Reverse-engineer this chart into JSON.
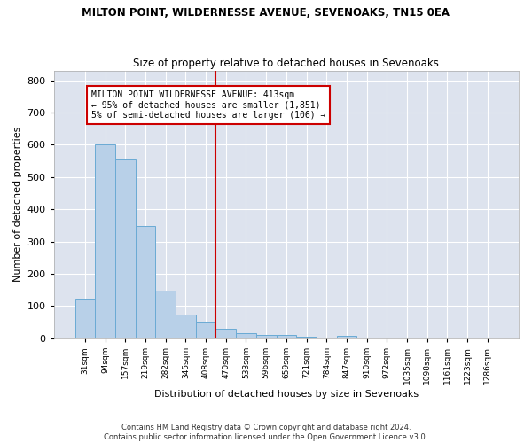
{
  "title": "MILTON POINT, WILDERNESSE AVENUE, SEVENOAKS, TN15 0EA",
  "subtitle": "Size of property relative to detached houses in Sevenoaks",
  "xlabel": "Distribution of detached houses by size in Sevenoaks",
  "ylabel": "Number of detached properties",
  "bar_color": "#b8d0e8",
  "bar_edge_color": "#6aaad4",
  "background_color": "#dde3ee",
  "grid_color": "#ffffff",
  "categories": [
    "31sqm",
    "94sqm",
    "157sqm",
    "219sqm",
    "282sqm",
    "345sqm",
    "408sqm",
    "470sqm",
    "533sqm",
    "596sqm",
    "659sqm",
    "721sqm",
    "784sqm",
    "847sqm",
    "910sqm",
    "972sqm",
    "1035sqm",
    "1098sqm",
    "1161sqm",
    "1223sqm",
    "1286sqm"
  ],
  "values": [
    120,
    600,
    555,
    348,
    148,
    75,
    52,
    30,
    15,
    12,
    12,
    6,
    0,
    8,
    0,
    0,
    0,
    0,
    0,
    0,
    0
  ],
  "vline_color": "#cc0000",
  "vline_x_index": 6.5,
  "annotation_text": "MILTON POINT WILDERNESSE AVENUE: 413sqm\n← 95% of detached houses are smaller (1,851)\n5% of semi-detached houses are larger (106) →",
  "yticks": [
    0,
    100,
    200,
    300,
    400,
    500,
    600,
    700,
    800
  ],
  "ylim": [
    0,
    830
  ],
  "figwidth": 6.0,
  "figheight": 5.0,
  "dpi": 100,
  "footer1": "Contains HM Land Registry data © Crown copyright and database right 2024.",
  "footer2": "Contains public sector information licensed under the Open Government Licence v3.0."
}
